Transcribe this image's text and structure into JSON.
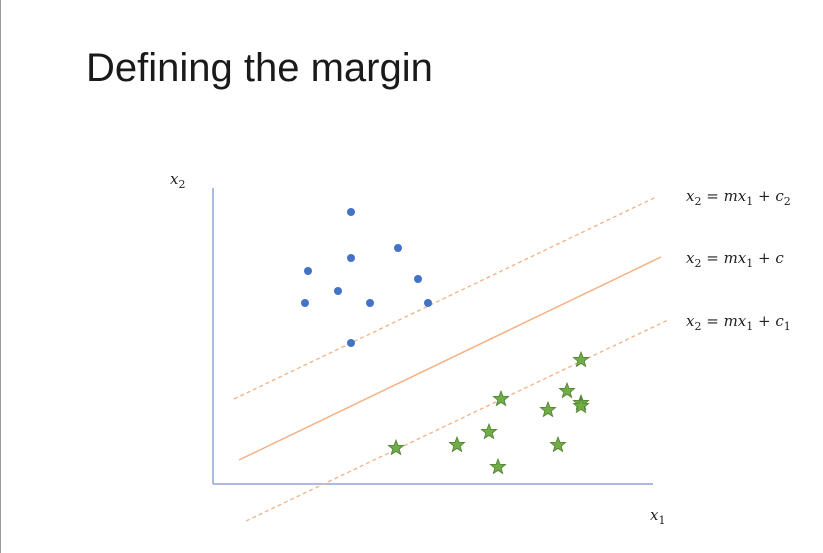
{
  "slide": {
    "title": "Defining the margin"
  },
  "axes": {
    "x_label": {
      "base": "x",
      "sub": "1"
    },
    "y_label": {
      "base": "x",
      "sub": "2"
    }
  },
  "lines": [
    {
      "kind": "upper-margin",
      "style": "dashed",
      "equation": {
        "lhs": "x",
        "lhs_sub": "2",
        "rhs": "mx",
        "rhs_sub": "1",
        "const": "c",
        "const_sub": "2"
      }
    },
    {
      "kind": "decision-boundary",
      "style": "solid",
      "equation": {
        "lhs": "x",
        "lhs_sub": "2",
        "rhs": "mx",
        "rhs_sub": "1",
        "const": "c",
        "const_sub": ""
      }
    },
    {
      "kind": "lower-margin",
      "style": "dashed",
      "equation": {
        "lhs": "x",
        "lhs_sub": "2",
        "rhs": "mx",
        "rhs_sub": "1",
        "const": "c",
        "const_sub": "1"
      }
    }
  ],
  "colors": {
    "axis": "#8da3d9",
    "line": "#f4b183",
    "dot": "#4472c4",
    "star": "#70ad47",
    "star_edge": "#507e32"
  },
  "class_a_dots_count_label": "",
  "class_b_stars_count_label": ""
}
